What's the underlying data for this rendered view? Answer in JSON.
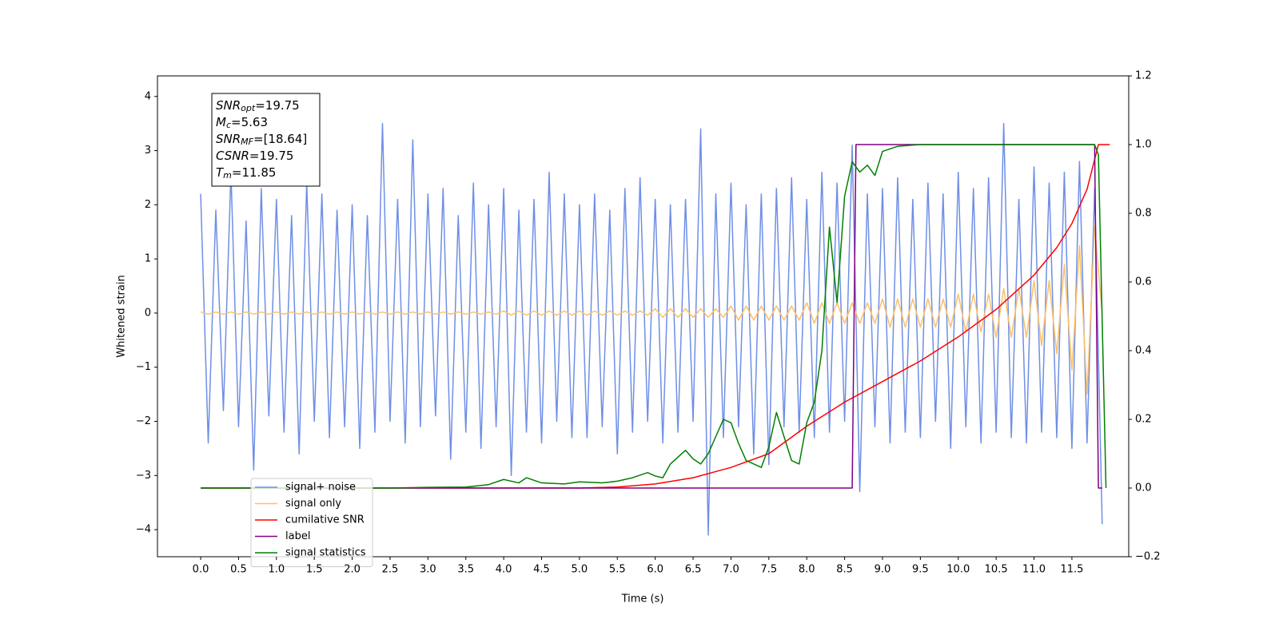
{
  "chart_data": {
    "type": "line",
    "x_label": "Time (s)",
    "y_label": "Whitened strain",
    "xlim": [
      -0.57,
      12.25
    ],
    "ylim": [
      -4.5,
      4.38
    ],
    "y2lim": [
      -0.2,
      1.2
    ],
    "xticks": [
      {
        "value": 0,
        "label": "0.0"
      },
      0.5,
      {
        "value": 1,
        "label": "1.0"
      },
      1.5,
      {
        "value": 2,
        "label": "2.0"
      },
      2.5,
      {
        "value": 3,
        "label": "3.0"
      },
      3.5,
      {
        "value": 4,
        "label": "4.0"
      },
      4.5,
      {
        "value": 5,
        "label": "5.0"
      },
      5.5,
      {
        "value": 6,
        "label": "6.0"
      },
      6.5,
      {
        "value": 7,
        "label": "7.0"
      },
      7.5,
      {
        "value": 8,
        "label": "8.0"
      },
      8.5,
      {
        "value": 9,
        "label": "9.0"
      },
      9.5,
      {
        "value": 10,
        "label": "10.0"
      },
      10.5,
      {
        "value": 11,
        "label": "11.0"
      },
      11.5
    ],
    "yticks": [
      {
        "value": -4,
        "label": "−4"
      },
      {
        "value": -3,
        "label": "−3"
      },
      {
        "value": -2,
        "label": "−2"
      },
      {
        "value": -1,
        "label": "−1"
      },
      0,
      1,
      2,
      3,
      4
    ],
    "y2ticks": [
      {
        "value": -0.2,
        "label": "−0.2"
      },
      {
        "value": 0,
        "label": "0.0"
      },
      0.2,
      0.4,
      0.6,
      0.8,
      {
        "value": 1,
        "label": "1.0"
      },
      1.2
    ],
    "annotation": [
      {
        "text": "SNR",
        "sub": "opt",
        "rest": "=19.75"
      },
      {
        "text": "M",
        "sub": "c",
        "rest": "=5.63"
      },
      {
        "text": "SNR",
        "sub": "MF",
        "rest": "=[18.64]"
      },
      {
        "text": "CSNR",
        "rest": "=19.75"
      },
      {
        "text": "T",
        "sub": "m",
        "rest": "=11.85"
      }
    ],
    "legend": "lower left",
    "x": [
      0,
      0.1,
      0.2,
      0.3,
      0.4,
      0.5,
      0.6,
      0.7,
      0.8,
      0.9,
      1,
      1.1,
      1.2,
      1.3,
      1.4,
      1.5,
      1.6,
      1.7,
      1.8,
      1.9,
      2,
      2.1,
      2.2,
      2.3,
      2.4,
      2.5,
      2.6,
      2.7,
      2.8,
      2.9,
      3,
      3.1,
      3.2,
      3.3,
      3.4,
      3.5,
      3.6,
      3.7,
      3.8,
      3.9,
      4,
      4.1,
      4.2,
      4.3,
      4.4,
      4.5,
      4.6,
      4.7,
      4.8,
      4.9,
      5,
      5.1,
      5.2,
      5.3,
      5.4,
      5.5,
      5.6,
      5.7,
      5.8,
      5.9,
      6,
      6.1,
      6.2,
      6.3,
      6.4,
      6.5,
      6.6,
      6.7,
      6.8,
      6.9,
      7,
      7.1,
      7.2,
      7.3,
      7.4,
      7.5,
      7.6,
      7.7,
      7.8,
      7.9,
      8,
      8.1,
      8.2,
      8.3,
      8.4,
      8.5,
      8.6,
      8.7,
      8.8,
      8.9,
      9,
      9.1,
      9.2,
      9.3,
      9.4,
      9.5,
      9.6,
      9.7,
      9.8,
      9.9,
      10,
      10.1,
      10.2,
      10.3,
      10.4,
      10.5,
      10.6,
      10.7,
      10.8,
      10.9,
      11,
      11.1,
      11.2,
      11.3,
      11.4,
      11.5,
      11.6,
      11.7,
      11.8,
      11.9
    ],
    "series": [
      {
        "name": "signal+ noise",
        "color": "#6f8fe6",
        "values": [
          2.2,
          -2.4,
          1.9,
          -1.8,
          2.6,
          -2.1,
          1.7,
          -2.9,
          2.3,
          -1.9,
          2.1,
          -2.2,
          1.8,
          -2.6,
          2.4,
          -2.0,
          2.2,
          -2.3,
          1.9,
          -2.1,
          2.0,
          -2.5,
          1.8,
          -2.2,
          3.5,
          -2.0,
          2.1,
          -2.4,
          3.2,
          -2.1,
          2.2,
          -1.9,
          2.3,
          -2.7,
          1.8,
          -2.2,
          2.4,
          -2.5,
          2.0,
          -2.1,
          2.3,
          -3.0,
          1.9,
          -2.2,
          2.1,
          -2.4,
          2.6,
          -2.0,
          2.2,
          -2.3,
          2.0,
          -2.3,
          2.2,
          -2.1,
          1.9,
          -2.6,
          2.3,
          -2.2,
          2.5,
          -2.0,
          2.1,
          -2.4,
          2.0,
          -2.2,
          2.1,
          -2.0,
          3.4,
          -4.1,
          2.2,
          -2.3,
          2.4,
          -2.1,
          2.0,
          -2.6,
          2.2,
          -2.8,
          2.3,
          -2.1,
          2.5,
          -2.2,
          2.1,
          -2.3,
          2.6,
          -2.2,
          2.4,
          -2.0,
          3.1,
          -3.3,
          2.2,
          -2.1,
          2.3,
          -2.4,
          2.5,
          -2.2,
          2.1,
          -2.3,
          2.4,
          -2.0,
          2.2,
          -2.5,
          2.6,
          -2.1,
          2.3,
          -2.4,
          2.5,
          -2.2,
          3.5,
          -2.3,
          2.1,
          -2.4,
          2.7,
          -2.2,
          2.4,
          -2.3,
          2.6,
          -2.5,
          2.8,
          -2.4,
          2.3,
          -3.9
        ]
      },
      {
        "name": "signal only",
        "color": "#ffbf66",
        "values": [
          0.02,
          -0.02,
          0.02,
          -0.02,
          0.02,
          -0.02,
          0.02,
          -0.02,
          0.02,
          -0.02,
          0.02,
          -0.02,
          0.02,
          -0.02,
          0.02,
          -0.02,
          0.02,
          -0.02,
          0.02,
          -0.02,
          0.02,
          -0.02,
          0.02,
          -0.02,
          0.02,
          -0.02,
          0.02,
          -0.02,
          0.02,
          -0.02,
          0.02,
          -0.02,
          0.02,
          -0.02,
          0.02,
          -0.02,
          0.02,
          -0.02,
          0.02,
          -0.02,
          0.04,
          -0.04,
          0.04,
          -0.04,
          0.04,
          -0.04,
          0.04,
          -0.04,
          0.04,
          -0.04,
          0.04,
          -0.04,
          0.04,
          -0.04,
          0.04,
          -0.04,
          0.04,
          -0.04,
          0.04,
          -0.04,
          0.08,
          -0.08,
          0.08,
          -0.08,
          0.08,
          -0.08,
          0.08,
          -0.08,
          0.08,
          -0.08,
          0.13,
          -0.13,
          0.13,
          -0.13,
          0.13,
          -0.13,
          0.13,
          -0.13,
          0.13,
          -0.13,
          0.19,
          -0.19,
          0.19,
          -0.19,
          0.19,
          -0.19,
          0.19,
          -0.19,
          0.19,
          -0.19,
          0.26,
          -0.26,
          0.26,
          -0.26,
          0.26,
          -0.26,
          0.26,
          -0.26,
          0.26,
          -0.26,
          0.35,
          -0.35,
          0.35,
          -0.35,
          0.35,
          -0.45,
          0.45,
          -0.45,
          0.45,
          -0.45,
          0.6,
          -0.6,
          0.6,
          -0.75,
          0.9,
          -1.05,
          1.25,
          -1.5,
          1.6,
          0
        ]
      },
      {
        "name": "cumilative SNR",
        "color": "#ff0000",
        "axis": "y2",
        "x": [
          0,
          5,
          5.5,
          6,
          6.5,
          7,
          7.5,
          8,
          8.5,
          9,
          9.5,
          10,
          10.5,
          11,
          11.3,
          11.5,
          11.7,
          11.85,
          12
        ],
        "values": [
          0,
          0,
          0.003,
          0.012,
          0.03,
          0.06,
          0.1,
          0.18,
          0.25,
          0.31,
          0.37,
          0.44,
          0.52,
          0.62,
          0.7,
          0.77,
          0.87,
          1,
          1
        ]
      },
      {
        "name": "label",
        "color": "#800080",
        "axis": "y2",
        "x": [
          0,
          8.6,
          8.65,
          11.8,
          11.85,
          11.9
        ],
        "values": [
          0,
          0,
          1,
          1,
          0,
          0
        ]
      },
      {
        "name": "signal statistics",
        "color": "#008000",
        "axis": "y2",
        "x": [
          0,
          2.5,
          3,
          3.5,
          3.8,
          4,
          4.2,
          4.3,
          4.5,
          4.8,
          5,
          5.3,
          5.5,
          5.7,
          5.9,
          6,
          6.1,
          6.2,
          6.4,
          6.5,
          6.6,
          6.7,
          6.8,
          6.9,
          7,
          7.1,
          7.2,
          7.4,
          7.5,
          7.6,
          7.7,
          7.8,
          7.9,
          8,
          8.1,
          8.2,
          8.3,
          8.4,
          8.5,
          8.6,
          8.7,
          8.8,
          8.9,
          9,
          9.2,
          9.5,
          11.8,
          11.85,
          11.95
        ],
        "values": [
          0,
          0,
          0.002,
          0.003,
          0.01,
          0.025,
          0.015,
          0.03,
          0.015,
          0.012,
          0.018,
          0.015,
          0.02,
          0.03,
          0.045,
          0.035,
          0.03,
          0.07,
          0.11,
          0.085,
          0.07,
          0.1,
          0.15,
          0.2,
          0.19,
          0.13,
          0.08,
          0.06,
          0.12,
          0.22,
          0.15,
          0.08,
          0.07,
          0.19,
          0.25,
          0.4,
          0.76,
          0.54,
          0.85,
          0.95,
          0.92,
          0.94,
          0.91,
          0.98,
          0.995,
          1,
          1,
          0.97,
          0
        ]
      }
    ]
  }
}
